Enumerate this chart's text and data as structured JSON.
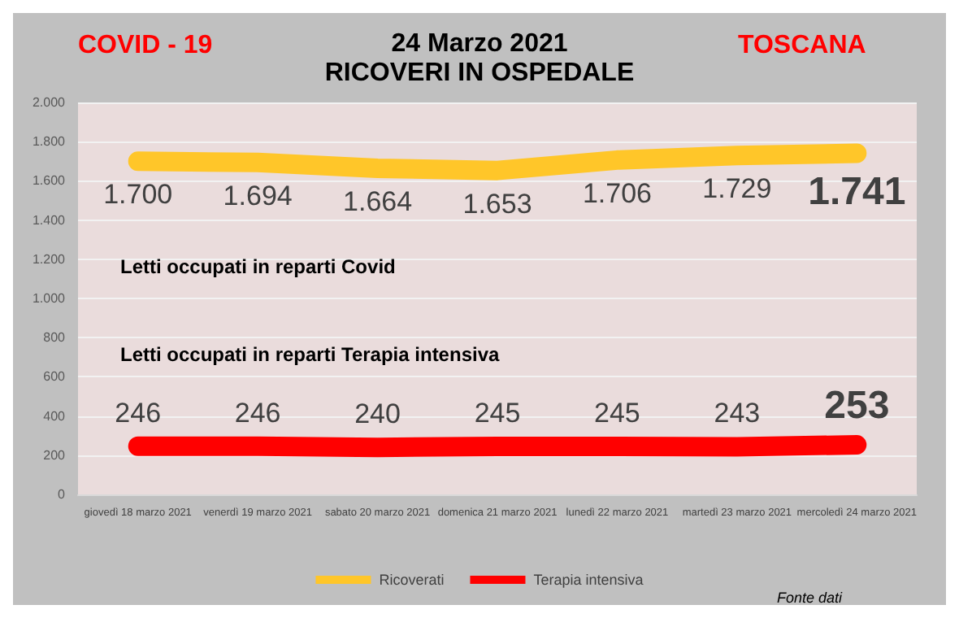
{
  "chart_data": {
    "type": "line",
    "title": "24 Marzo 2021",
    "subtitle": "RICOVERI IN OSPEDALE",
    "annotations": [
      "COVID - 19",
      "TOSCANA",
      "Letti occupati in reparti Covid",
      "Letti occupati in reparti Terapia intensiva",
      "Fonte dati"
    ],
    "categories": [
      "giovedì 18 marzo 2021",
      "venerdì 19 marzo 2021",
      "sabato 20 marzo 2021",
      "domenica 21 marzo 2021",
      "lunedì 22 marzo 2021",
      "martedì 23 marzo 2021",
      "mercoledì 24 marzo 2021"
    ],
    "series": [
      {
        "name": "Ricoverati",
        "color": "#ffc629",
        "values": [
          1700,
          1694,
          1664,
          1653,
          1706,
          1729,
          1741
        ],
        "value_labels": [
          "1.700",
          "1.694",
          "1.664",
          "1.653",
          "1.706",
          "1.729",
          "1.741"
        ]
      },
      {
        "name": "Terapia intensiva",
        "color": "#ff0000",
        "values": [
          246,
          246,
          240,
          245,
          245,
          243,
          253
        ],
        "value_labels": [
          "246",
          "246",
          "240",
          "245",
          "245",
          "243",
          "253"
        ]
      }
    ],
    "ylim": [
      0,
      2000
    ],
    "yticks": [
      0,
      {
        "value": 200,
        "label": "200"
      },
      {
        "value": 400,
        "label": "400"
      },
      {
        "value": 600,
        "label": "600"
      },
      {
        "value": 800,
        "label": "800"
      },
      {
        "value": 1000,
        "label": "1.000"
      },
      {
        "value": 1200,
        "label": "1.200"
      },
      {
        "value": 1400,
        "label": "1.400"
      },
      {
        "value": 1600,
        "label": "1.600"
      },
      {
        "value": 1800,
        "label": "1.800"
      },
      {
        "value": 2000,
        "label": "2.000"
      }
    ],
    "grid": "y",
    "legend": "bottom",
    "marker": "none",
    "line_style": "solid"
  }
}
